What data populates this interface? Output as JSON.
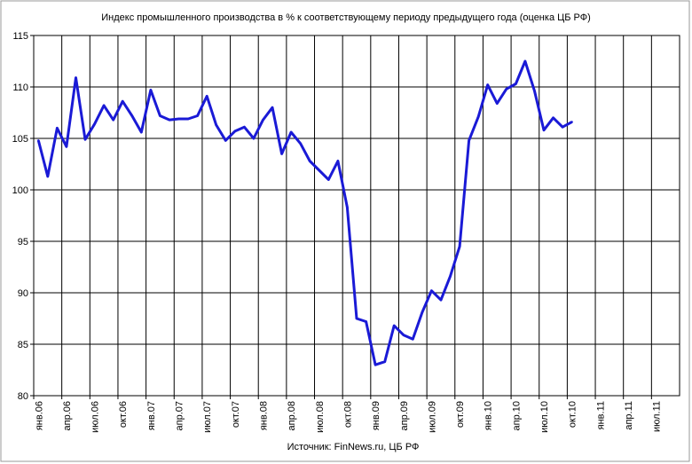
{
  "chart_data": {
    "type": "line",
    "title": "Индекс промышленного производства в % к соответствующему периоду предыдущего года (оценка ЦБ РФ)",
    "source": "Источник: FinNews.ru, ЦБ РФ",
    "ylim": [
      80,
      115
    ],
    "yticks": [
      80,
      85,
      90,
      95,
      100,
      105,
      110,
      115
    ],
    "grid": true,
    "x_tick_labels": [
      "янв.06",
      "апр.06",
      "июл.06",
      "окт.06",
      "янв.07",
      "апр.07",
      "июл.07",
      "окт.07",
      "янв.08",
      "апр.08",
      "июл.08",
      "окт.08",
      "янв.09",
      "апр.09",
      "июл.09",
      "окт.09",
      "янв.10",
      "апр.10",
      "июл.10",
      "окт.10",
      "янв.11",
      "апр.11",
      "июл.11"
    ],
    "line_color": "#1a1ad6",
    "series": [
      {
        "name": "",
        "values": [
          104.8,
          101.3,
          106.0,
          104.2,
          110.9,
          104.9,
          106.4,
          108.2,
          106.8,
          108.6,
          107.2,
          105.6,
          109.7,
          107.2,
          106.8,
          106.9,
          106.9,
          107.2,
          109.1,
          106.3,
          104.8,
          105.7,
          106.1,
          105.0,
          106.8,
          108.0,
          103.5,
          105.6,
          104.5,
          102.8,
          101.9,
          101.0,
          102.8,
          98.3,
          87.5,
          87.2,
          83.0,
          83.3,
          86.8,
          85.9,
          85.5,
          88.1,
          90.2,
          89.3,
          91.6,
          94.5,
          104.8,
          107.1,
          110.2,
          108.4,
          109.8,
          110.3,
          112.5,
          109.6,
          105.8,
          107.0,
          106.1,
          106.6
        ]
      }
    ]
  }
}
